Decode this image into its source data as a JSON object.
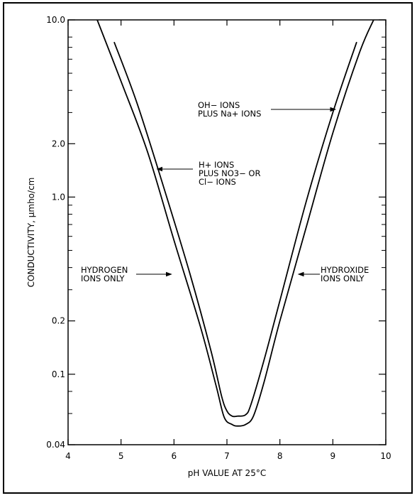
{
  "chart_data": {
    "type": "line",
    "title": "",
    "xlabel": "pH VALUE AT 25°C",
    "ylabel": "CONDUCTIVITY, µmho/cm",
    "xlim": [
      4,
      10
    ],
    "ylim": [
      0.04,
      10.0
    ],
    "yscale": "log",
    "grid": false,
    "x_ticks": [
      4,
      5,
      6,
      7,
      8,
      9,
      10
    ],
    "x_tick_labels": [
      "4",
      "5",
      "6",
      "7",
      "8",
      "9",
      "10"
    ],
    "y_ticks": [
      0.04,
      0.1,
      0.2,
      1.0,
      2.0,
      10.0
    ],
    "y_tick_labels": [
      "0.04",
      "0.1",
      "0.2",
      "1.0",
      "2.0",
      "10.0"
    ],
    "y_minor_ticks": [
      0.06,
      0.08,
      0.3,
      0.4,
      0.5,
      0.6,
      0.7,
      0.8,
      0.9,
      3,
      4,
      5,
      6,
      7,
      8
    ],
    "series": [
      {
        "curve": "outer",
        "points": [
          [
            4.55,
            10.0
          ],
          [
            5.0,
            4.5
          ],
          [
            5.5,
            1.8
          ],
          [
            6.0,
            0.57
          ],
          [
            6.5,
            0.185
          ],
          [
            6.8,
            0.085
          ],
          [
            6.95,
            0.057
          ],
          [
            7.1,
            0.052
          ],
          [
            7.2,
            0.051
          ],
          [
            7.35,
            0.052
          ],
          [
            7.5,
            0.058
          ],
          [
            7.7,
            0.09
          ],
          [
            8.0,
            0.2
          ],
          [
            8.5,
            0.68
          ],
          [
            9.0,
            2.3
          ],
          [
            9.5,
            6.5
          ],
          [
            9.77,
            10.0
          ]
        ]
      },
      {
        "curve": "inner",
        "points": [
          [
            4.87,
            7.5
          ],
          [
            5.3,
            3.4
          ],
          [
            5.8,
            1.15
          ],
          [
            6.3,
            0.37
          ],
          [
            6.7,
            0.135
          ],
          [
            6.9,
            0.075
          ],
          [
            7.0,
            0.062
          ],
          [
            7.1,
            0.058
          ],
          [
            7.2,
            0.058
          ],
          [
            7.35,
            0.059
          ],
          [
            7.45,
            0.067
          ],
          [
            7.7,
            0.12
          ],
          [
            8.0,
            0.26
          ],
          [
            8.5,
            0.95
          ],
          [
            9.0,
            3.0
          ],
          [
            9.45,
            7.5
          ]
        ]
      }
    ],
    "annotations": [
      {
        "lines": [
          "OH− IONS",
          "PLUS Na+ IONS"
        ],
        "arrow_to": [
          9.05,
          2.9
        ]
      },
      {
        "lines": [
          "H+ IONS",
          "PLUS NO3− OR",
          "Cl− IONS"
        ],
        "arrow_to": [
          5.68,
          1.55
        ]
      },
      {
        "lines": [
          "HYDROGEN",
          "IONS ONLY"
        ],
        "arrow_to": [
          5.95,
          0.5
        ]
      },
      {
        "lines": [
          "HYDROXIDE",
          "IONS ONLY"
        ],
        "arrow_to": [
          8.35,
          0.5
        ]
      }
    ]
  }
}
